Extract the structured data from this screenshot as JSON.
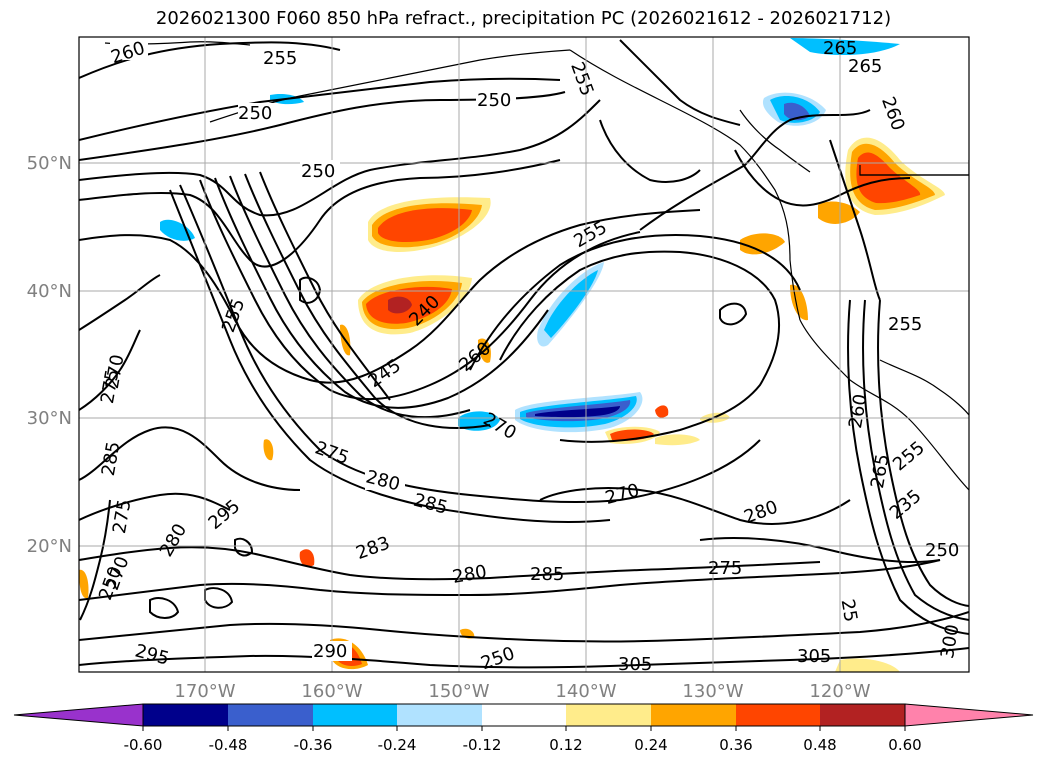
{
  "title": "2026021300 F060 850 hPa refract., precipitation PC (2026021612 - 2026021712)",
  "lat_labels": [
    "50°N",
    "40°N",
    "30°N",
    "20°N"
  ],
  "lon_labels": [
    "170°W",
    "160°W",
    "150°W",
    "140°W",
    "130°W",
    "120°W"
  ],
  "contour_labels": [
    "260",
    "255",
    "250",
    "250",
    "255",
    "265",
    "265",
    "260",
    "250",
    "255",
    "240",
    "245",
    "260",
    "255",
    "270",
    "275",
    "270",
    "285",
    "275",
    "280",
    "295",
    "275",
    "280",
    "285",
    "283",
    "270",
    "280",
    "275",
    "285",
    "280",
    "250",
    "270",
    "290",
    "295",
    "305",
    "305",
    "255",
    "265",
    "250",
    "250",
    "235",
    "255",
    "260",
    "300",
    "25"
  ],
  "colorbar": {
    "labels": [
      "-0.60",
      "-0.48",
      "-0.36",
      "-0.24",
      "-0.12",
      "0.12",
      "0.24",
      "0.36",
      "0.48",
      "0.60"
    ],
    "colors": [
      "#9932cc",
      "#00008b",
      "#3a5fcd",
      "#00bfff",
      "#b0e2ff",
      "#ffffff",
      "#ffec8b",
      "#ffa500",
      "#ff4500",
      "#b22222",
      "#ff82ab"
    ]
  },
  "colors": {
    "contour": "#000000",
    "grid": "#aaaaaa",
    "axis_label": "#808080"
  }
}
